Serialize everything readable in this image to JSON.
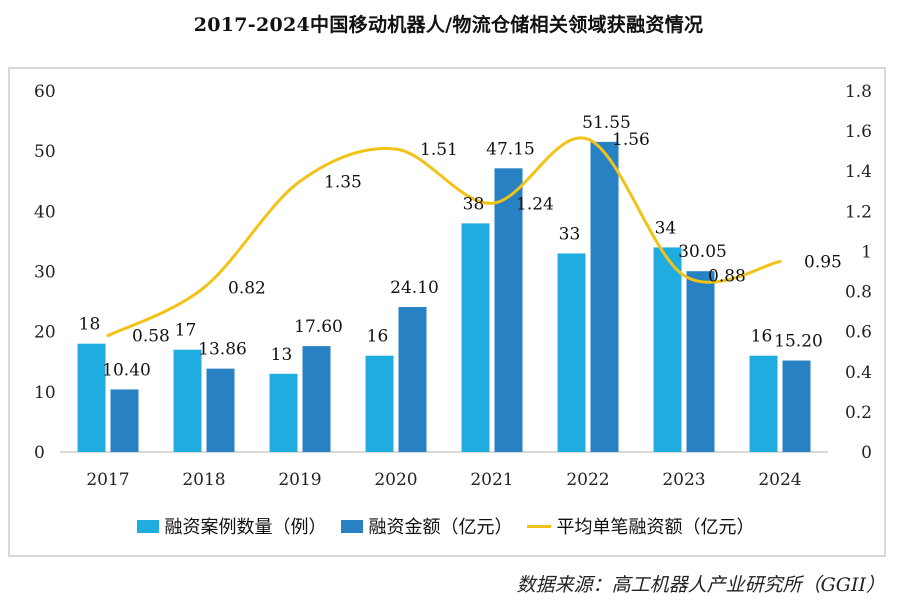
{
  "title": "2017-2024中国移动机器人/物流仓储相关领域获融资情况",
  "source": "数据来源：高工机器人产业研究所（GGII）",
  "colors": {
    "cases": "#1facdf",
    "amount": "#2781c3",
    "avg": "#f2c316",
    "axis": "#d9d9d9"
  },
  "legend": [
    {
      "label": "融资案例数量（例）",
      "type": "bar",
      "color_key": "cases"
    },
    {
      "label": "融资金额（亿元）",
      "type": "bar",
      "color_key": "amount"
    },
    {
      "label": "平均单笔融资额（亿元）",
      "type": "line",
      "color_key": "avg"
    }
  ],
  "chart_data": {
    "type": "bar",
    "title": "2017-2024中国移动机器人/物流仓储相关领域获融资情况",
    "categories": [
      "2017",
      "2018",
      "2019",
      "2020",
      "2021",
      "2022",
      "2023",
      "2024"
    ],
    "series": [
      {
        "name": "融资案例数量（例）",
        "type": "bar",
        "axis": "left",
        "values": [
          18,
          17,
          13,
          16,
          38,
          33,
          34,
          16
        ],
        "labels": [
          "18",
          "17",
          "13",
          "16",
          "38",
          "33",
          "34",
          "16"
        ]
      },
      {
        "name": "融资金额（亿元）",
        "type": "bar",
        "axis": "left",
        "values": [
          10.4,
          13.86,
          17.6,
          24.1,
          47.15,
          51.55,
          30.05,
          15.2
        ],
        "labels": [
          "10.40",
          "13.86",
          "17.60",
          "24.10",
          "47.15",
          "51.55",
          "30.05",
          "15.20"
        ]
      },
      {
        "name": "平均单笔融资额（亿元）",
        "type": "line",
        "smooth": true,
        "axis": "right",
        "values": [
          0.58,
          0.82,
          1.35,
          1.51,
          1.24,
          1.56,
          0.88,
          0.95
        ],
        "labels": [
          "0.58",
          "0.82",
          "1.35",
          "1.51",
          "1.24",
          "1.56",
          "0.88",
          "0.95"
        ]
      }
    ],
    "y_left": {
      "min": 0,
      "max": 60,
      "ticks": [
        "0",
        "10",
        "20",
        "30",
        "40",
        "50",
        "60"
      ]
    },
    "y_right": {
      "min": 0,
      "max": 1.8,
      "ticks": [
        "0",
        "0.2",
        "0.4",
        "0.6",
        "0.8",
        "1",
        "1.2",
        "1.4",
        "1.6",
        "1.8"
      ]
    },
    "xlabel": "",
    "ylabel": "",
    "grid": false,
    "legend_position": "bottom"
  }
}
